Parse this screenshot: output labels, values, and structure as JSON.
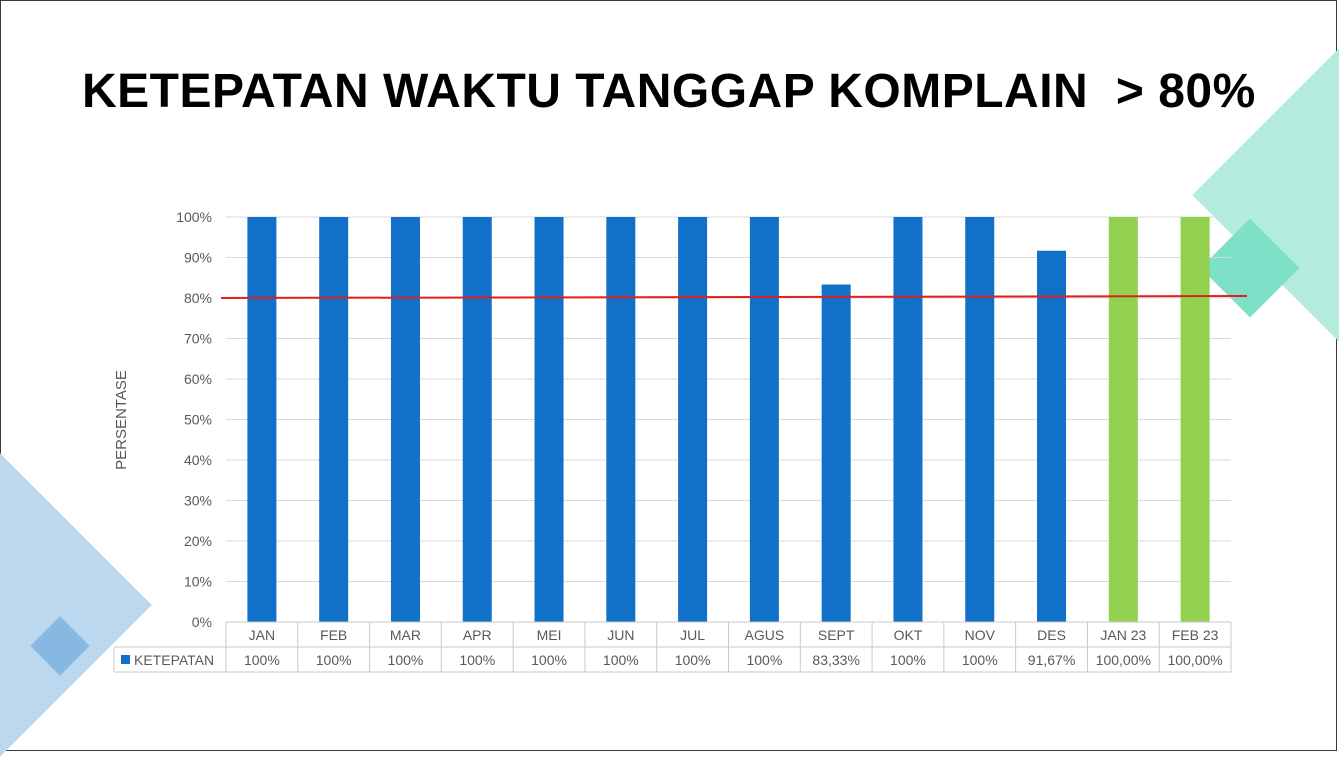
{
  "slide": {
    "title": "KETEPATAN WAKTU TANGGAP KOMPLAIN  > 80%"
  },
  "chart_data": {
    "type": "bar",
    "ylabel": "PERSENTASE",
    "ylim": [
      0,
      100
    ],
    "y_ticks": [
      "0%",
      "10%",
      "20%",
      "30%",
      "40%",
      "50%",
      "60%",
      "70%",
      "80%",
      "90%",
      "100%"
    ],
    "grid": true,
    "target_line": {
      "value": 80,
      "color": "#e02020"
    },
    "categories": [
      "JAN",
      "FEB",
      "MAR",
      "APR",
      "MEI",
      "JUN",
      "JUL",
      "AGUS",
      "SEPT",
      "OKT",
      "NOV",
      "DES",
      "JAN 23",
      "FEB 23"
    ],
    "series": [
      {
        "name": "KETEPATAN",
        "values": [
          100,
          100,
          100,
          100,
          100,
          100,
          100,
          100,
          83.33,
          100,
          100,
          91.67,
          100,
          100
        ],
        "labels": [
          "100%",
          "100%",
          "100%",
          "100%",
          "100%",
          "100%",
          "100%",
          "100%",
          "83,33%",
          "100%",
          "100%",
          "91,67%",
          "100,00%",
          "100,00%"
        ],
        "color": "#1170c7",
        "highlight_color": "#92d050",
        "highlight_categories": [
          "JAN 23",
          "FEB 23"
        ]
      }
    ],
    "data_table": true
  }
}
